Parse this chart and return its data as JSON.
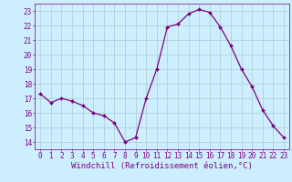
{
  "x": [
    0,
    1,
    2,
    3,
    4,
    5,
    6,
    7,
    8,
    9,
    10,
    11,
    12,
    13,
    14,
    15,
    16,
    17,
    18,
    19,
    20,
    21,
    22,
    23
  ],
  "y": [
    17.3,
    16.7,
    17.0,
    16.8,
    16.5,
    16.0,
    15.8,
    15.3,
    14.0,
    14.3,
    17.0,
    19.0,
    21.9,
    22.1,
    22.8,
    23.1,
    22.9,
    21.9,
    20.6,
    19.0,
    17.8,
    16.2,
    15.1,
    14.3
  ],
  "line_color": "#800080",
  "marker": "D",
  "marker_size": 2.0,
  "bg_color": "#cceeff",
  "grid_color": "#aacccc",
  "xlabel": "Windchill (Refroidissement éolien,°C)",
  "ylim": [
    13.5,
    23.5
  ],
  "xlim": [
    -0.5,
    23.5
  ],
  "yticks": [
    14,
    15,
    16,
    17,
    18,
    19,
    20,
    21,
    22,
    23
  ],
  "xticks": [
    0,
    1,
    2,
    3,
    4,
    5,
    6,
    7,
    8,
    9,
    10,
    11,
    12,
    13,
    14,
    15,
    16,
    17,
    18,
    19,
    20,
    21,
    22,
    23
  ],
  "tick_label_fontsize": 5.5,
  "xlabel_fontsize": 6.5,
  "line_width": 0.9
}
